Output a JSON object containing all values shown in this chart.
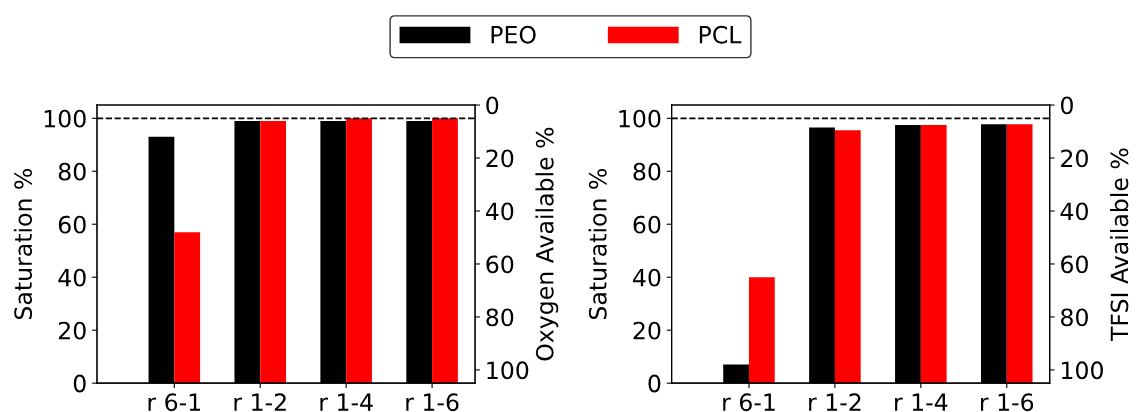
{
  "chart_data": [
    {
      "type": "bar",
      "categories": [
        "r 6-1",
        "r 1-2",
        "r 1-4",
        "r 1-6"
      ],
      "ylabel": "Saturation %",
      "y2label": "Oxygen Available %",
      "ylim": [
        0,
        105
      ],
      "yticks": [
        0,
        20,
        40,
        60,
        80,
        100
      ],
      "y2lim": [
        105,
        0
      ],
      "y2ticks": [
        0,
        20,
        40,
        60,
        80,
        100
      ],
      "legend": "top",
      "grid": false,
      "series": [
        {
          "name": "PEO",
          "color": "#000000",
          "values": [
            93,
            99,
            99,
            99
          ]
        },
        {
          "name": "PCL",
          "color": "#ff0000",
          "values": [
            57,
            99,
            100,
            100
          ]
        }
      ],
      "ref_lines": [
        {
          "axis": "y",
          "value": 100,
          "color": "#000000",
          "line_style": "dashed"
        }
      ]
    },
    {
      "type": "bar",
      "categories": [
        "r 6-1",
        "r 1-2",
        "r 1-4",
        "r 1-6"
      ],
      "ylabel": "Saturation %",
      "y2label": "TFSI Available %",
      "ylim": [
        0,
        105
      ],
      "yticks": [
        0,
        20,
        40,
        60,
        80,
        100
      ],
      "y2lim": [
        105,
        0
      ],
      "y2ticks": [
        0,
        20,
        40,
        60,
        80,
        100
      ],
      "grid": false,
      "series": [
        {
          "color": "#000000",
          "values": [
            7,
            96.5,
            97.5,
            97.8
          ]
        },
        {
          "color": "#ff0000",
          "values": [
            40,
            95.5,
            97.5,
            97.8
          ]
        }
      ],
      "ref_lines": [
        {
          "axis": "y",
          "value": 100,
          "color": "#000000",
          "line_style": "dashed"
        }
      ]
    }
  ]
}
